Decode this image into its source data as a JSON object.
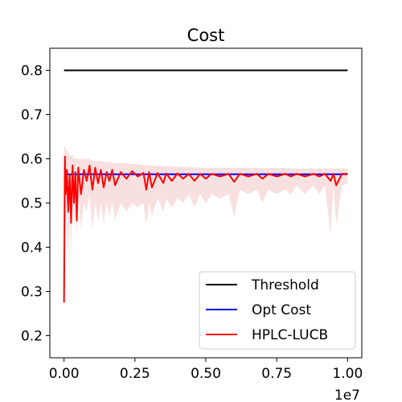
{
  "chart_data": {
    "type": "line",
    "title": "Cost",
    "xlabel": "",
    "ylabel": "",
    "x_offset_label": "1e7",
    "xlim": [
      -0.05,
      1.05
    ],
    "ylim": [
      0.15,
      0.85
    ],
    "x_ticks": [
      0.0,
      0.25,
      0.5,
      0.75,
      1.0
    ],
    "x_tick_labels": [
      "0.00",
      "0.25",
      "0.50",
      "0.75",
      "1.00"
    ],
    "y_ticks": [
      0.2,
      0.3,
      0.4,
      0.5,
      0.6,
      0.7,
      0.8
    ],
    "y_tick_labels": [
      "0.2",
      "0.3",
      "0.4",
      "0.5",
      "0.6",
      "0.7",
      "0.8"
    ],
    "grid": false,
    "legend_position": "lower-right",
    "series": [
      {
        "name": "Threshold",
        "color": "#000000",
        "x": [
          0.0,
          1.0
        ],
        "y": [
          0.8,
          0.8
        ]
      },
      {
        "name": "Opt Cost",
        "color": "#0000ff",
        "x": [
          0.0,
          1.0
        ],
        "y": [
          0.565,
          0.565
        ]
      },
      {
        "name": "HPLC-LUCB",
        "color": "#ff0000",
        "band_color": "#f4c6c6",
        "x": [
          0.0,
          0.003,
          0.006,
          0.01,
          0.015,
          0.02,
          0.025,
          0.03,
          0.035,
          0.04,
          0.045,
          0.05,
          0.06,
          0.07,
          0.08,
          0.09,
          0.1,
          0.11,
          0.12,
          0.13,
          0.14,
          0.15,
          0.16,
          0.17,
          0.18,
          0.2,
          0.22,
          0.24,
          0.26,
          0.28,
          0.29,
          0.3,
          0.31,
          0.33,
          0.35,
          0.36,
          0.38,
          0.4,
          0.42,
          0.44,
          0.46,
          0.48,
          0.5,
          0.52,
          0.55,
          0.58,
          0.6,
          0.62,
          0.65,
          0.68,
          0.7,
          0.72,
          0.75,
          0.78,
          0.8,
          0.82,
          0.85,
          0.88,
          0.9,
          0.92,
          0.94,
          0.95,
          0.96,
          0.98,
          1.0
        ],
        "y": [
          0.275,
          0.605,
          0.52,
          0.575,
          0.48,
          0.565,
          0.455,
          0.585,
          0.5,
          0.57,
          0.46,
          0.58,
          0.52,
          0.575,
          0.55,
          0.585,
          0.53,
          0.58,
          0.545,
          0.575,
          0.535,
          0.57,
          0.55,
          0.575,
          0.54,
          0.57,
          0.555,
          0.572,
          0.56,
          0.568,
          0.53,
          0.57,
          0.535,
          0.568,
          0.545,
          0.567,
          0.55,
          0.567,
          0.555,
          0.566,
          0.55,
          0.566,
          0.555,
          0.566,
          0.56,
          0.566,
          0.548,
          0.566,
          0.56,
          0.566,
          0.555,
          0.566,
          0.56,
          0.566,
          0.56,
          0.566,
          0.56,
          0.566,
          0.56,
          0.566,
          0.55,
          0.566,
          0.54,
          0.566,
          0.566
        ],
        "lower": [
          0.18,
          0.55,
          0.42,
          0.5,
          0.35,
          0.5,
          0.38,
          0.52,
          0.44,
          0.5,
          0.42,
          0.52,
          0.44,
          0.5,
          0.48,
          0.52,
          0.44,
          0.5,
          0.46,
          0.5,
          0.45,
          0.5,
          0.47,
          0.5,
          0.46,
          0.5,
          0.48,
          0.5,
          0.49,
          0.5,
          0.45,
          0.5,
          0.47,
          0.51,
          0.48,
          0.51,
          0.49,
          0.51,
          0.5,
          0.52,
          0.49,
          0.52,
          0.5,
          0.52,
          0.51,
          0.52,
          0.47,
          0.53,
          0.52,
          0.53,
          0.5,
          0.53,
          0.52,
          0.53,
          0.52,
          0.54,
          0.52,
          0.54,
          0.52,
          0.54,
          0.43,
          0.54,
          0.45,
          0.54,
          0.545
        ],
        "upper": [
          0.63,
          0.63,
          0.62,
          0.62,
          0.61,
          0.61,
          0.605,
          0.61,
          0.6,
          0.6,
          0.6,
          0.6,
          0.6,
          0.6,
          0.6,
          0.6,
          0.595,
          0.595,
          0.595,
          0.595,
          0.593,
          0.593,
          0.592,
          0.592,
          0.59,
          0.59,
          0.59,
          0.588,
          0.588,
          0.586,
          0.586,
          0.585,
          0.585,
          0.584,
          0.584,
          0.583,
          0.583,
          0.582,
          0.582,
          0.582,
          0.581,
          0.58,
          0.58,
          0.58,
          0.58,
          0.58,
          0.58,
          0.58,
          0.58,
          0.579,
          0.579,
          0.579,
          0.579,
          0.579,
          0.578,
          0.578,
          0.578,
          0.578,
          0.578,
          0.578,
          0.578,
          0.578,
          0.578,
          0.578,
          0.578
        ]
      }
    ]
  }
}
